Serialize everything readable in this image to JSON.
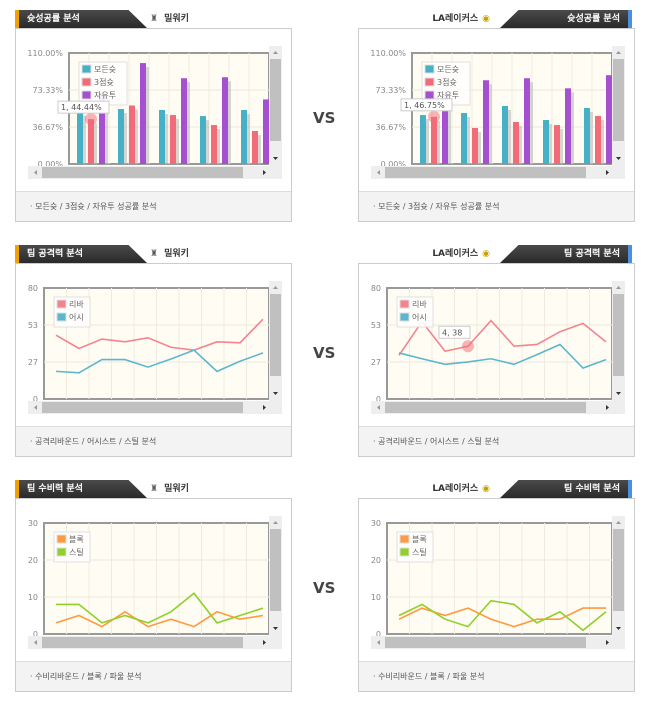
{
  "vs_label": "VS",
  "teams": {
    "left": "밀워키",
    "right": "LA레이커스"
  },
  "colors": {
    "cyan": "#45b0c6",
    "red": "#f26b78",
    "purple": "#a550d0",
    "orange": "#ff9a40",
    "green": "#8fd02a"
  },
  "sections": [
    {
      "title": "슛성공률 분석",
      "footer": "모든슛 / 3점슛 / 자유투 성공률 분석"
    },
    {
      "title": "팀 공격력 분석",
      "footer": "공격리바운드 / 어시스트 / 스틸 분석"
    },
    {
      "title": "팀 수비력 분석",
      "footer": "수비리바운드 / 블록 / 파울 분석"
    }
  ],
  "chart_data": [
    {
      "type": "bar",
      "team": "left",
      "yticks": [
        "110.00%",
        "73.33%",
        "36.67%",
        "0.00%"
      ],
      "ylim": [
        0,
        110
      ],
      "series": [
        {
          "name": "모든슛",
          "color": "#45b0c6",
          "values": [
            52,
            54.5,
            53.5,
            47.5,
            53.5
          ]
        },
        {
          "name": "3점슛",
          "color": "#f26b78",
          "values": [
            44.44,
            58,
            48.5,
            38.6,
            32.7
          ]
        },
        {
          "name": "자유투",
          "color": "#a550d0",
          "values": [
            70,
            100,
            85,
            86,
            64
          ]
        }
      ],
      "tooltip": {
        "label": "1, 44.44%",
        "series": 1,
        "index": 0
      }
    },
    {
      "type": "bar",
      "team": "right",
      "yticks": [
        "110.00%",
        "73.33%",
        "36.67%",
        "0.00%"
      ],
      "ylim": [
        0,
        110
      ],
      "series": [
        {
          "name": "모든슛",
          "color": "#45b0c6",
          "values": [
            48.5,
            50.5,
            57.5,
            43.6,
            55.5
          ]
        },
        {
          "name": "3점슛",
          "color": "#f26b78",
          "values": [
            46.75,
            35.7,
            41.6,
            38.6,
            47.6
          ]
        },
        {
          "name": "자유투",
          "color": "#a550d0",
          "values": [
            68,
            83,
            85,
            75,
            88
          ]
        }
      ],
      "tooltip": {
        "label": "1, 46.75%",
        "series": 1,
        "index": 0
      }
    },
    {
      "type": "line",
      "team": "left",
      "yticks": [
        "80",
        "53",
        "27",
        "0"
      ],
      "ylim": [
        0,
        80
      ],
      "series": [
        {
          "name": "리바",
          "color": "#f5838f",
          "values": [
            46,
            36.4,
            43.2,
            41.2,
            44.1,
            37.3,
            35.2,
            41.2,
            40.5,
            57.5
          ]
        },
        {
          "name": "어시",
          "color": "#5bb8cc",
          "values": [
            19.9,
            18.9,
            28.4,
            28.4,
            23,
            28.8,
            35.2,
            19.9,
            27.2,
            33.2
          ]
        }
      ]
    },
    {
      "type": "line",
      "team": "right",
      "yticks": [
        "80",
        "53",
        "27",
        "0"
      ],
      "ylim": [
        0,
        80
      ],
      "series": [
        {
          "name": "리바",
          "color": "#f5838f",
          "values": [
            31.5,
            55.8,
            34.4,
            38,
            56.5,
            38.1,
            39.3,
            48.5,
            54.5,
            41.2
          ]
        },
        {
          "name": "어시",
          "color": "#5bb8cc",
          "values": [
            33.2,
            29,
            25,
            26.7,
            29,
            25,
            32,
            39.3,
            22.3,
            28.4
          ]
        }
      ],
      "tooltip": {
        "label": "4, 38",
        "series": 0,
        "index": 3
      }
    },
    {
      "type": "line",
      "team": "left",
      "yticks": [
        "30",
        "20",
        "10",
        "0"
      ],
      "ylim": [
        0,
        30
      ],
      "series": [
        {
          "name": "블록",
          "color": "#ff9a40",
          "values": [
            3,
            5,
            2,
            6,
            2,
            4,
            2,
            6,
            4,
            5
          ]
        },
        {
          "name": "스틸",
          "color": "#8fd02a",
          "values": [
            8,
            8,
            3,
            5,
            3,
            6,
            11,
            3,
            5,
            7
          ]
        }
      ]
    },
    {
      "type": "line",
      "team": "right",
      "yticks": [
        "30",
        "20",
        "10",
        "0"
      ],
      "ylim": [
        0,
        30
      ],
      "series": [
        {
          "name": "블록",
          "color": "#ff9a40",
          "values": [
            4,
            7,
            5,
            7,
            4,
            2,
            4,
            4,
            7,
            7
          ]
        },
        {
          "name": "스틸",
          "color": "#8fd02a",
          "values": [
            5,
            8,
            4,
            2,
            9,
            8,
            3,
            6,
            1,
            6
          ]
        }
      ]
    }
  ]
}
